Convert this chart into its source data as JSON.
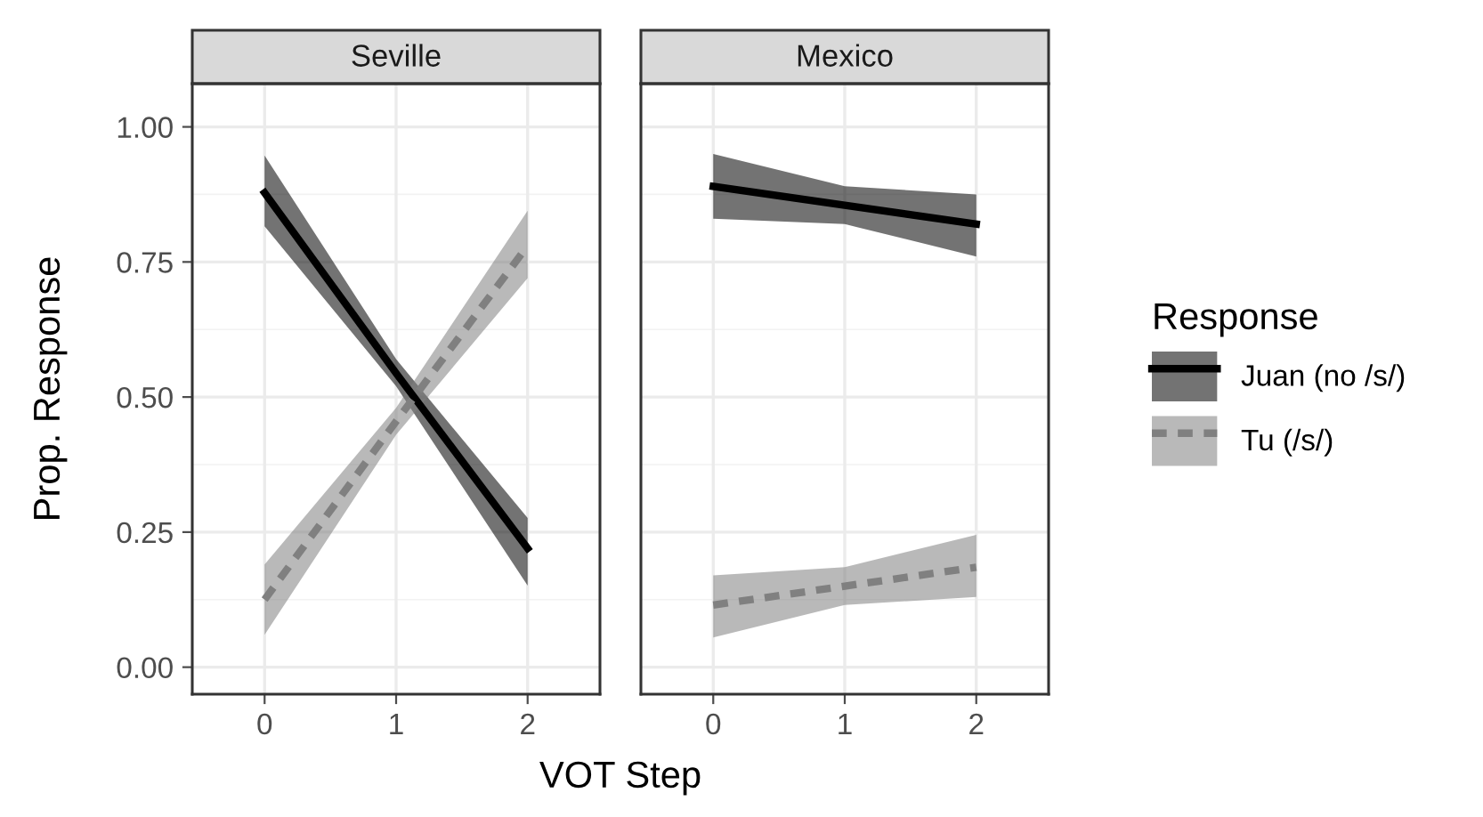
{
  "chart_data": [
    {
      "type": "line",
      "title": "Seville",
      "ylabel": "Prop. Response",
      "xlabel": "VOT Step",
      "x": [
        0,
        1,
        2
      ],
      "xlim": [
        -0.55,
        2.55
      ],
      "xticks": [
        0,
        1,
        2
      ],
      "ylim": [
        -0.05,
        1.08
      ],
      "yticks": [
        {
          "value": 0,
          "label": "0.00"
        },
        {
          "value": 0.25,
          "label": "0.25"
        },
        {
          "value": 0.5,
          "label": "0.50"
        },
        {
          "value": 0.75,
          "label": "0.75"
        },
        {
          "value": 1,
          "label": "1.00"
        }
      ],
      "grid": true,
      "legend": "right",
      "legend_title": "Response",
      "series": [
        {
          "name": "Juan (no /s/)",
          "color": "#000000",
          "line_style": "solid",
          "values": [
            0.878,
            0.544,
            0.22
          ],
          "lower": [
            0.816,
            0.52,
            0.151
          ],
          "upper": [
            0.947,
            0.57,
            0.276
          ]
        },
        {
          "name": "Tu (/s/)",
          "color": "#808080",
          "line_style": "dashed",
          "values": [
            0.125,
            0.455,
            0.78
          ],
          "lower": [
            0.06,
            0.43,
            0.72
          ],
          "upper": [
            0.19,
            0.48,
            0.845
          ]
        }
      ]
    },
    {
      "type": "line",
      "title": "Mexico",
      "x": [
        0,
        1,
        2
      ],
      "xlim": [
        -0.55,
        2.55
      ],
      "xticks": [
        0,
        1,
        2
      ],
      "ylim": [
        -0.05,
        1.08
      ],
      "yticks": [
        0,
        0.25,
        0.5,
        0.75,
        1
      ],
      "grid": true,
      "tick_labels": "x",
      "series": [
        {
          "color": "#000000",
          "line_style": "solid",
          "values": [
            0.89,
            0.855,
            0.82
          ],
          "lower": [
            0.83,
            0.82,
            0.76
          ],
          "upper": [
            0.95,
            0.89,
            0.875
          ]
        },
        {
          "color": "#808080",
          "line_style": "dashed",
          "values": [
            0.115,
            0.15,
            0.185
          ],
          "lower": [
            0.055,
            0.115,
            0.13
          ],
          "upper": [
            0.17,
            0.185,
            0.245
          ]
        }
      ]
    }
  ]
}
